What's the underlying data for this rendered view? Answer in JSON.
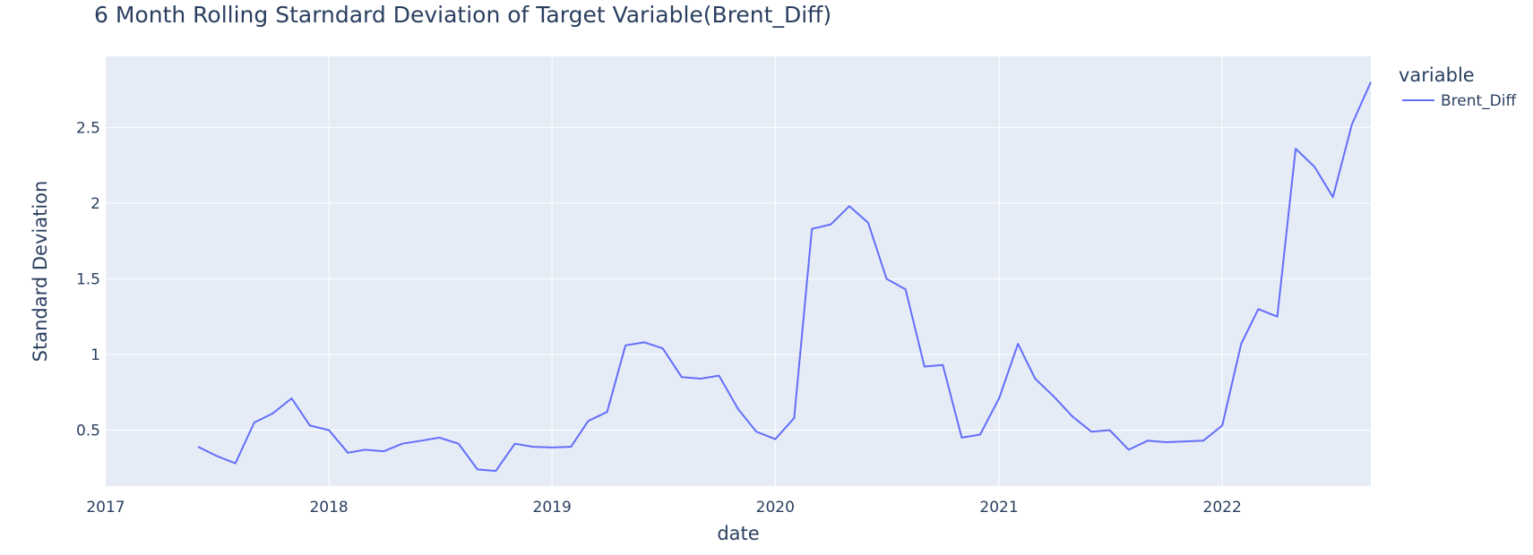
{
  "title": "6 Month Rolling Starndard Deviation of Target Variable(Brent_Diff)",
  "chart_data": {
    "type": "line",
    "title": "6 Month Rolling Starndard Deviation of Target Variable(Brent_Diff)",
    "xlabel": "date",
    "ylabel": "Standard Deviation",
    "legend_title": "variable",
    "legend_placement": "top-right",
    "grid": true,
    "xlim": [
      "2017-01-01",
      "2022-09-01"
    ],
    "ylim": [
      0.13,
      2.97
    ],
    "x_ticks": [
      "2017",
      "2018",
      "2019",
      "2020",
      "2021",
      "2022"
    ],
    "y_ticks": [
      0.5,
      1,
      1.5,
      2,
      2.5
    ],
    "y_tick_labels": [
      "0.5",
      "1",
      "1.5",
      "2",
      "2.5"
    ],
    "colors": {
      "series": "#636efa",
      "plot_bg": "#e5ecf6",
      "grid": "#ffffff"
    },
    "series": [
      {
        "name": "Brent_Diff",
        "x": [
          "2017-06-01",
          "2017-07-01",
          "2017-08-01",
          "2017-09-01",
          "2017-10-01",
          "2017-11-01",
          "2017-12-01",
          "2018-01-01",
          "2018-02-01",
          "2018-03-01",
          "2018-04-01",
          "2018-05-01",
          "2018-06-01",
          "2018-07-01",
          "2018-08-01",
          "2018-09-01",
          "2018-10-01",
          "2018-11-01",
          "2018-12-01",
          "2019-01-01",
          "2019-02-01",
          "2019-03-01",
          "2019-04-01",
          "2019-05-01",
          "2019-06-01",
          "2019-07-01",
          "2019-08-01",
          "2019-09-01",
          "2019-10-01",
          "2019-11-01",
          "2019-12-01",
          "2020-01-01",
          "2020-02-01",
          "2020-03-01",
          "2020-04-01",
          "2020-05-01",
          "2020-06-01",
          "2020-07-01",
          "2020-08-01",
          "2020-09-01",
          "2020-10-01",
          "2020-11-01",
          "2020-12-01",
          "2021-01-01",
          "2021-02-01",
          "2021-03-01",
          "2021-04-01",
          "2021-05-01",
          "2021-06-01",
          "2021-07-01",
          "2021-08-01",
          "2021-09-01",
          "2021-10-01",
          "2021-11-01",
          "2021-12-01",
          "2022-01-01",
          "2022-02-01",
          "2022-03-01",
          "2022-04-01",
          "2022-05-01",
          "2022-06-01",
          "2022-07-01",
          "2022-08-01",
          "2022-09-01"
        ],
        "y": [
          0.39,
          0.33,
          0.28,
          0.55,
          0.61,
          0.71,
          0.53,
          0.5,
          0.35,
          0.37,
          0.36,
          0.41,
          0.43,
          0.45,
          0.41,
          0.24,
          0.23,
          0.41,
          0.39,
          0.385,
          0.39,
          0.56,
          0.62,
          1.06,
          1.08,
          1.04,
          0.85,
          0.84,
          0.86,
          0.64,
          0.49,
          0.44,
          0.58,
          1.83,
          1.86,
          1.98,
          1.87,
          1.5,
          1.43,
          0.92,
          0.93,
          0.45,
          0.47,
          0.71,
          1.07,
          0.84,
          0.72,
          0.59,
          0.49,
          0.5,
          0.37,
          0.43,
          0.42,
          0.425,
          0.43,
          0.53,
          1.07,
          1.3,
          1.25,
          2.36,
          2.24,
          2.04,
          2.52,
          2.8
        ]
      }
    ]
  }
}
